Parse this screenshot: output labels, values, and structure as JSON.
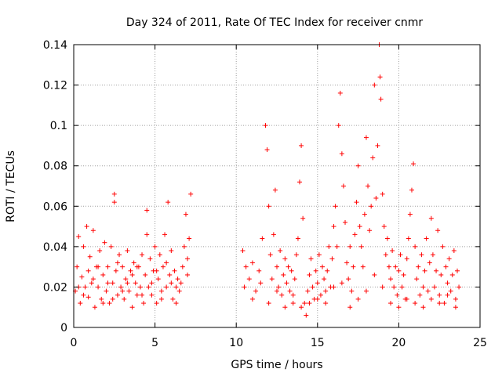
{
  "chart_data": {
    "type": "scatter",
    "title": "Day 324 of 2011, Rate Of TEC Index for receiver cnmr",
    "xlabel": "GPS time / hours",
    "ylabel": "ROTI / TECUs",
    "xlim": [
      0,
      25
    ],
    "ylim": [
      0,
      0.14
    ],
    "xticks": [
      0,
      5,
      10,
      15,
      20,
      25
    ],
    "yticks": [
      0,
      0.02,
      0.04,
      0.06,
      0.08,
      0.1,
      0.12,
      0.14
    ],
    "xtick_labels": [
      "0",
      "5",
      "10",
      "15",
      "20",
      "25"
    ],
    "ytick_labels": [
      "0",
      "0.02",
      "0.04",
      "0.06",
      "0.08",
      "0.1",
      "0.12",
      "0.14"
    ],
    "grid": true,
    "marker": "+",
    "series": [
      {
        "color": "#ff0000",
        "points": [
          [
            0.1,
            0.018
          ],
          [
            0.2,
            0.03
          ],
          [
            0.3,
            0.045
          ],
          [
            0.4,
            0.012
          ],
          [
            0.5,
            0.025
          ],
          [
            0.6,
            0.04
          ],
          [
            0.7,
            0.02
          ],
          [
            0.8,
            0.05
          ],
          [
            0.9,
            0.015
          ],
          [
            1.0,
            0.035
          ],
          [
            1.1,
            0.022
          ],
          [
            1.2,
            0.048
          ],
          [
            1.3,
            0.01
          ],
          [
            1.4,
            0.03
          ],
          [
            1.5,
            0.02
          ],
          [
            1.6,
            0.038
          ],
          [
            1.7,
            0.014
          ],
          [
            1.8,
            0.026
          ],
          [
            1.9,
            0.042
          ],
          [
            2.0,
            0.018
          ],
          [
            2.1,
            0.03
          ],
          [
            2.2,
            0.012
          ],
          [
            2.3,
            0.04
          ],
          [
            2.4,
            0.022
          ],
          [
            2.5,
            0.066
          ],
          [
            2.5,
            0.062
          ],
          [
            2.6,
            0.028
          ],
          [
            2.7,
            0.016
          ],
          [
            2.8,
            0.036
          ],
          [
            2.9,
            0.02
          ],
          [
            3.0,
            0.03
          ],
          [
            3.1,
            0.014
          ],
          [
            3.2,
            0.024
          ],
          [
            3.3,
            0.038
          ],
          [
            3.4,
            0.018
          ],
          [
            3.5,
            0.028
          ],
          [
            3.6,
            0.01
          ],
          [
            3.7,
            0.032
          ],
          [
            3.8,
            0.022
          ],
          [
            3.9,
            0.016
          ],
          [
            4.0,
            0.03
          ],
          [
            4.1,
            0.02
          ],
          [
            4.2,
            0.036
          ],
          [
            4.3,
            0.012
          ],
          [
            4.4,
            0.026
          ],
          [
            4.5,
            0.058
          ],
          [
            4.5,
            0.046
          ],
          [
            4.6,
            0.02
          ],
          [
            4.7,
            0.034
          ],
          [
            4.8,
            0.016
          ],
          [
            4.9,
            0.028
          ],
          [
            5.0,
            0.04
          ],
          [
            5.1,
            0.012
          ],
          [
            5.2,
            0.024
          ],
          [
            5.3,
            0.036
          ],
          [
            5.4,
            0.018
          ],
          [
            5.5,
            0.03
          ],
          [
            5.6,
            0.046
          ],
          [
            5.7,
            0.02
          ],
          [
            5.8,
            0.062
          ],
          [
            5.9,
            0.026
          ],
          [
            6.0,
            0.038
          ],
          [
            6.1,
            0.014
          ],
          [
            6.2,
            0.028
          ],
          [
            6.3,
            0.02
          ],
          [
            6.4,
            0.024
          ],
          [
            6.5,
            0.018
          ],
          [
            6.6,
            0.022
          ],
          [
            6.7,
            0.03
          ],
          [
            6.8,
            0.04
          ],
          [
            6.9,
            0.056
          ],
          [
            7.0,
            0.034
          ],
          [
            7.1,
            0.044
          ],
          [
            7.2,
            0.066
          ],
          [
            7.0,
            0.026
          ],
          [
            0.3,
            0.02
          ],
          [
            0.6,
            0.016
          ],
          [
            0.9,
            0.028
          ],
          [
            1.2,
            0.024
          ],
          [
            1.5,
            0.03
          ],
          [
            1.8,
            0.012
          ],
          [
            2.1,
            0.022
          ],
          [
            2.4,
            0.014
          ],
          [
            2.7,
            0.032
          ],
          [
            3.0,
            0.018
          ],
          [
            3.3,
            0.022
          ],
          [
            3.6,
            0.026
          ],
          [
            3.9,
            0.03
          ],
          [
            4.2,
            0.016
          ],
          [
            4.8,
            0.022
          ],
          [
            5.1,
            0.028
          ],
          [
            5.4,
            0.014
          ],
          [
            5.7,
            0.032
          ],
          [
            6.0,
            0.022
          ],
          [
            6.3,
            0.012
          ],
          [
            10.4,
            0.038
          ],
          [
            10.6,
            0.03
          ],
          [
            10.8,
            0.024
          ],
          [
            11.0,
            0.032
          ],
          [
            11.2,
            0.018
          ],
          [
            11.4,
            0.028
          ],
          [
            11.6,
            0.044
          ],
          [
            11.8,
            0.1
          ],
          [
            11.9,
            0.088
          ],
          [
            12.0,
            0.06
          ],
          [
            12.1,
            0.036
          ],
          [
            12.2,
            0.024
          ],
          [
            12.3,
            0.046
          ],
          [
            12.4,
            0.068
          ],
          [
            12.5,
            0.03
          ],
          [
            12.6,
            0.02
          ],
          [
            12.7,
            0.038
          ],
          [
            12.8,
            0.016
          ],
          [
            12.9,
            0.026
          ],
          [
            13.0,
            0.034
          ],
          [
            13.1,
            0.022
          ],
          [
            13.2,
            0.03
          ],
          [
            13.3,
            0.018
          ],
          [
            13.4,
            0.028
          ],
          [
            13.5,
            0.012
          ],
          [
            13.6,
            0.024
          ],
          [
            13.7,
            0.036
          ],
          [
            13.8,
            0.044
          ],
          [
            13.9,
            0.072
          ],
          [
            14.0,
            0.09
          ],
          [
            14.1,
            0.054
          ],
          [
            14.2,
            0.012
          ],
          [
            14.3,
            0.006
          ],
          [
            14.4,
            0.018
          ],
          [
            14.5,
            0.026
          ],
          [
            14.6,
            0.034
          ],
          [
            14.7,
            0.02
          ],
          [
            14.8,
            0.014
          ],
          [
            14.9,
            0.028
          ],
          [
            15.0,
            0.022
          ],
          [
            15.1,
            0.036
          ],
          [
            15.2,
            0.016
          ],
          [
            15.3,
            0.03
          ],
          [
            15.4,
            0.024
          ],
          [
            15.5,
            0.012
          ],
          [
            15.6,
            0.028
          ],
          [
            15.7,
            0.04
          ],
          [
            15.8,
            0.02
          ],
          [
            15.9,
            0.034
          ],
          [
            16.0,
            0.05
          ],
          [
            16.1,
            0.06
          ],
          [
            16.2,
            0.04
          ],
          [
            16.3,
            0.1
          ],
          [
            16.4,
            0.116
          ],
          [
            16.5,
            0.086
          ],
          [
            16.6,
            0.07
          ],
          [
            16.7,
            0.052
          ],
          [
            16.8,
            0.032
          ],
          [
            16.9,
            0.024
          ],
          [
            17.0,
            0.04
          ],
          [
            17.1,
            0.018
          ],
          [
            17.2,
            0.03
          ],
          [
            17.3,
            0.046
          ],
          [
            17.4,
            0.062
          ],
          [
            17.5,
            0.08
          ],
          [
            17.6,
            0.05
          ],
          [
            17.7,
            0.04
          ],
          [
            17.8,
            0.03
          ],
          [
            17.9,
            0.056
          ],
          [
            18.0,
            0.094
          ],
          [
            18.1,
            0.07
          ],
          [
            18.2,
            0.048
          ],
          [
            18.3,
            0.06
          ],
          [
            18.4,
            0.084
          ],
          [
            18.5,
            0.12
          ],
          [
            18.6,
            0.064
          ],
          [
            18.7,
            0.09
          ],
          [
            18.8,
            0.14
          ],
          [
            18.85,
            0.124
          ],
          [
            18.9,
            0.113
          ],
          [
            19.0,
            0.066
          ],
          [
            19.1,
            0.05
          ],
          [
            19.2,
            0.036
          ],
          [
            19.3,
            0.044
          ],
          [
            19.4,
            0.03
          ],
          [
            19.5,
            0.024
          ],
          [
            19.6,
            0.038
          ],
          [
            19.7,
            0.02
          ],
          [
            19.8,
            0.03
          ],
          [
            19.9,
            0.016
          ],
          [
            20.0,
            0.028
          ],
          [
            20.1,
            0.036
          ],
          [
            20.2,
            0.02
          ],
          [
            20.3,
            0.026
          ],
          [
            20.4,
            0.014
          ],
          [
            20.5,
            0.034
          ],
          [
            20.6,
            0.044
          ],
          [
            20.7,
            0.056
          ],
          [
            20.8,
            0.068
          ],
          [
            20.9,
            0.081
          ],
          [
            21.0,
            0.04
          ],
          [
            21.1,
            0.024
          ],
          [
            21.2,
            0.03
          ],
          [
            21.3,
            0.016
          ],
          [
            21.4,
            0.036
          ],
          [
            21.5,
            0.02
          ],
          [
            21.6,
            0.028
          ],
          [
            21.7,
            0.044
          ],
          [
            21.8,
            0.018
          ],
          [
            21.9,
            0.032
          ],
          [
            22.0,
            0.054
          ],
          [
            22.1,
            0.036
          ],
          [
            22.2,
            0.02
          ],
          [
            22.3,
            0.028
          ],
          [
            22.4,
            0.048
          ],
          [
            22.5,
            0.016
          ],
          [
            22.6,
            0.026
          ],
          [
            22.7,
            0.04
          ],
          [
            22.8,
            0.012
          ],
          [
            22.9,
            0.03
          ],
          [
            23.0,
            0.022
          ],
          [
            23.1,
            0.034
          ],
          [
            23.2,
            0.018
          ],
          [
            23.3,
            0.026
          ],
          [
            23.4,
            0.038
          ],
          [
            23.5,
            0.014
          ],
          [
            23.6,
            0.028
          ],
          [
            23.7,
            0.02
          ],
          [
            10.5,
            0.02
          ],
          [
            11.0,
            0.014
          ],
          [
            11.5,
            0.022
          ],
          [
            12.0,
            0.012
          ],
          [
            12.5,
            0.018
          ],
          [
            13.0,
            0.01
          ],
          [
            13.5,
            0.016
          ],
          [
            14.0,
            0.01
          ],
          [
            14.5,
            0.012
          ],
          [
            15.0,
            0.014
          ],
          [
            15.5,
            0.018
          ],
          [
            16.0,
            0.02
          ],
          [
            16.5,
            0.022
          ],
          [
            17.0,
            0.01
          ],
          [
            17.5,
            0.014
          ],
          [
            18.0,
            0.018
          ],
          [
            18.5,
            0.026
          ],
          [
            19.0,
            0.02
          ],
          [
            19.5,
            0.012
          ],
          [
            20.0,
            0.01
          ],
          [
            20.5,
            0.014
          ],
          [
            21.0,
            0.012
          ],
          [
            21.5,
            0.01
          ],
          [
            22.0,
            0.014
          ],
          [
            22.5,
            0.012
          ],
          [
            23.0,
            0.016
          ],
          [
            23.5,
            0.01
          ]
        ]
      }
    ]
  }
}
